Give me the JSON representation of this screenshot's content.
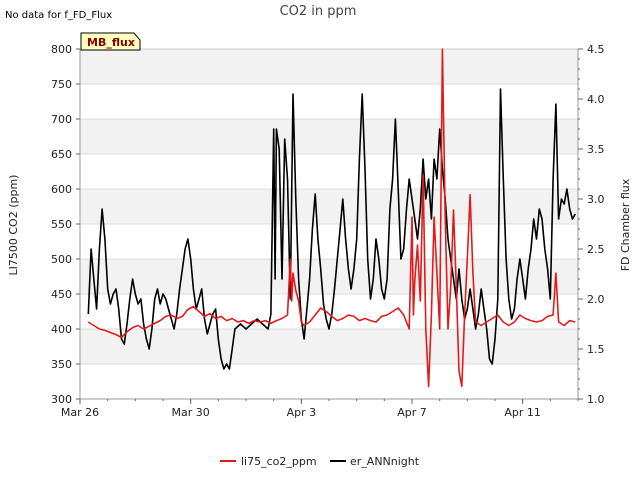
{
  "chart_data": {
    "type": "line",
    "title": "CO2 in ppm",
    "note": "No data for f_FD_Flux",
    "badge": "MB_flux",
    "ylabel_left": "LI7500 CO2 (ppm)",
    "ylabel_right": "FD Chamber flux",
    "ylim_left": [
      300,
      800
    ],
    "ylim_right": [
      1.0,
      4.5
    ],
    "left_ticks": [
      "300",
      "350",
      "400",
      "450",
      "500",
      "550",
      "600",
      "650",
      "700",
      "750",
      "800"
    ],
    "right_ticks": [
      "1.0",
      "1.5",
      "2.0",
      "2.5",
      "3.0",
      "3.5",
      "4.0",
      "4.5"
    ],
    "x_ticks": [
      {
        "label": "Mar 26",
        "day": 0
      },
      {
        "label": "Mar 30",
        "day": 4
      },
      {
        "label": "Apr 3",
        "day": 8
      },
      {
        "label": "Apr 7",
        "day": 12
      },
      {
        "label": "Apr 11",
        "day": 16
      }
    ],
    "xlim_days": [
      0,
      18
    ],
    "legend": [
      {
        "name": "li75_co2_ppm",
        "color": "#e31a1c"
      },
      {
        "name": "er_ANNnight",
        "color": "#000000"
      }
    ],
    "series": [
      {
        "name": "li75_co2_ppm",
        "axis": "left",
        "color": "#e31a1c",
        "points": [
          [
            0.3,
            410
          ],
          [
            0.5,
            405
          ],
          [
            0.7,
            400
          ],
          [
            0.9,
            398
          ],
          [
            1.1,
            395
          ],
          [
            1.3,
            392
          ],
          [
            1.5,
            388
          ],
          [
            1.7,
            396
          ],
          [
            1.9,
            402
          ],
          [
            2.1,
            405
          ],
          [
            2.3,
            400
          ],
          [
            2.5,
            404
          ],
          [
            2.7,
            408
          ],
          [
            2.9,
            412
          ],
          [
            3.1,
            418
          ],
          [
            3.3,
            420
          ],
          [
            3.5,
            415
          ],
          [
            3.7,
            418
          ],
          [
            3.9,
            428
          ],
          [
            4.1,
            432
          ],
          [
            4.3,
            425
          ],
          [
            4.5,
            418
          ],
          [
            4.7,
            422
          ],
          [
            4.9,
            415
          ],
          [
            5.1,
            418
          ],
          [
            5.3,
            412
          ],
          [
            5.5,
            415
          ],
          [
            5.7,
            410
          ],
          [
            5.9,
            412
          ],
          [
            6.1,
            408
          ],
          [
            6.3,
            412
          ],
          [
            6.5,
            410
          ],
          [
            6.7,
            412
          ],
          [
            6.9,
            408
          ],
          [
            7.1,
            412
          ],
          [
            7.3,
            415
          ],
          [
            7.5,
            420
          ],
          [
            7.6,
            500
          ],
          [
            7.65,
            440
          ],
          [
            7.7,
            480
          ],
          [
            7.8,
            455
          ],
          [
            7.9,
            440
          ],
          [
            8.0,
            410
          ],
          [
            8.1,
            405
          ],
          [
            8.3,
            410
          ],
          [
            8.5,
            420
          ],
          [
            8.7,
            430
          ],
          [
            8.9,
            425
          ],
          [
            9.1,
            418
          ],
          [
            9.3,
            412
          ],
          [
            9.5,
            415
          ],
          [
            9.7,
            420
          ],
          [
            9.9,
            418
          ],
          [
            10.1,
            412
          ],
          [
            10.3,
            415
          ],
          [
            10.5,
            412
          ],
          [
            10.7,
            410
          ],
          [
            10.9,
            418
          ],
          [
            11.1,
            420
          ],
          [
            11.3,
            425
          ],
          [
            11.5,
            430
          ],
          [
            11.7,
            420
          ],
          [
            11.9,
            400
          ],
          [
            12.0,
            560
          ],
          [
            12.05,
            420
          ],
          [
            12.1,
            470
          ],
          [
            12.2,
            520
          ],
          [
            12.3,
            440
          ],
          [
            12.4,
            620
          ],
          [
            12.5,
            400
          ],
          [
            12.6,
            318
          ],
          [
            12.7,
            420
          ],
          [
            12.8,
            560
          ],
          [
            12.9,
            480
          ],
          [
            13.0,
            400
          ],
          [
            13.1,
            800
          ],
          [
            13.2,
            560
          ],
          [
            13.3,
            400
          ],
          [
            13.4,
            460
          ],
          [
            13.5,
            570
          ],
          [
            13.6,
            460
          ],
          [
            13.7,
            340
          ],
          [
            13.8,
            318
          ],
          [
            13.9,
            420
          ],
          [
            14.0,
            500
          ],
          [
            14.1,
            592
          ],
          [
            14.2,
            480
          ],
          [
            14.3,
            410
          ],
          [
            14.5,
            405
          ],
          [
            14.7,
            410
          ],
          [
            14.9,
            415
          ],
          [
            15.1,
            420
          ],
          [
            15.3,
            410
          ],
          [
            15.5,
            405
          ],
          [
            15.7,
            410
          ],
          [
            15.9,
            420
          ],
          [
            16.1,
            415
          ],
          [
            16.3,
            412
          ],
          [
            16.5,
            410
          ],
          [
            16.7,
            412
          ],
          [
            16.9,
            418
          ],
          [
            17.1,
            420
          ],
          [
            17.2,
            480
          ],
          [
            17.3,
            410
          ],
          [
            17.5,
            405
          ],
          [
            17.7,
            412
          ],
          [
            17.9,
            410
          ]
        ]
      },
      {
        "name": "er_ANNnight",
        "axis": "right",
        "color": "#000000",
        "points": [
          [
            0.3,
            1.85
          ],
          [
            0.4,
            2.5
          ],
          [
            0.5,
            2.2
          ],
          [
            0.6,
            1.9
          ],
          [
            0.7,
            2.5
          ],
          [
            0.8,
            2.9
          ],
          [
            0.9,
            2.6
          ],
          [
            1.0,
            2.1
          ],
          [
            1.1,
            1.95
          ],
          [
            1.2,
            2.05
          ],
          [
            1.3,
            2.1
          ],
          [
            1.4,
            1.9
          ],
          [
            1.5,
            1.6
          ],
          [
            1.6,
            1.55
          ],
          [
            1.7,
            1.75
          ],
          [
            1.8,
            2.0
          ],
          [
            1.9,
            2.2
          ],
          [
            2.0,
            2.05
          ],
          [
            2.1,
            1.95
          ],
          [
            2.2,
            2.0
          ],
          [
            2.3,
            1.75
          ],
          [
            2.4,
            1.6
          ],
          [
            2.5,
            1.5
          ],
          [
            2.6,
            1.7
          ],
          [
            2.7,
            2.0
          ],
          [
            2.8,
            2.1
          ],
          [
            2.9,
            1.95
          ],
          [
            3.0,
            2.05
          ],
          [
            3.1,
            2.0
          ],
          [
            3.2,
            1.9
          ],
          [
            3.3,
            1.8
          ],
          [
            3.4,
            1.7
          ],
          [
            3.5,
            1.85
          ],
          [
            3.6,
            2.1
          ],
          [
            3.7,
            2.3
          ],
          [
            3.8,
            2.5
          ],
          [
            3.9,
            2.6
          ],
          [
            4.0,
            2.4
          ],
          [
            4.1,
            2.1
          ],
          [
            4.2,
            1.9
          ],
          [
            4.3,
            2.0
          ],
          [
            4.4,
            2.1
          ],
          [
            4.5,
            1.8
          ],
          [
            4.6,
            1.65
          ],
          [
            4.7,
            1.75
          ],
          [
            4.8,
            1.85
          ],
          [
            4.9,
            1.9
          ],
          [
            5.0,
            1.6
          ],
          [
            5.1,
            1.4
          ],
          [
            5.2,
            1.3
          ],
          [
            5.3,
            1.35
          ],
          [
            5.4,
            1.3
          ],
          [
            5.5,
            1.5
          ],
          [
            5.6,
            1.7
          ],
          [
            5.8,
            1.75
          ],
          [
            6.0,
            1.7
          ],
          [
            6.2,
            1.75
          ],
          [
            6.4,
            1.8
          ],
          [
            6.6,
            1.75
          ],
          [
            6.8,
            1.7
          ],
          [
            6.9,
            1.85
          ],
          [
            7.0,
            3.7
          ],
          [
            7.05,
            2.2
          ],
          [
            7.1,
            3.7
          ],
          [
            7.2,
            3.5
          ],
          [
            7.3,
            2.2
          ],
          [
            7.4,
            3.6
          ],
          [
            7.5,
            3.2
          ],
          [
            7.6,
            2.0
          ],
          [
            7.7,
            4.05
          ],
          [
            7.8,
            3.0
          ],
          [
            7.9,
            2.2
          ],
          [
            8.0,
            1.8
          ],
          [
            8.1,
            1.6
          ],
          [
            8.2,
            1.9
          ],
          [
            8.3,
            2.2
          ],
          [
            8.4,
            2.7
          ],
          [
            8.5,
            3.05
          ],
          [
            8.6,
            2.6
          ],
          [
            8.7,
            2.3
          ],
          [
            8.8,
            1.95
          ],
          [
            8.9,
            1.8
          ],
          [
            9.0,
            1.7
          ],
          [
            9.1,
            1.85
          ],
          [
            9.2,
            2.1
          ],
          [
            9.3,
            2.4
          ],
          [
            9.4,
            2.7
          ],
          [
            9.5,
            3.0
          ],
          [
            9.6,
            2.6
          ],
          [
            9.7,
            2.3
          ],
          [
            9.8,
            2.1
          ],
          [
            9.9,
            2.3
          ],
          [
            10.0,
            2.6
          ],
          [
            10.1,
            3.4
          ],
          [
            10.2,
            4.05
          ],
          [
            10.3,
            3.3
          ],
          [
            10.4,
            2.4
          ],
          [
            10.5,
            2.0
          ],
          [
            10.6,
            2.2
          ],
          [
            10.7,
            2.6
          ],
          [
            10.8,
            2.4
          ],
          [
            10.9,
            2.1
          ],
          [
            11.0,
            2.0
          ],
          [
            11.1,
            2.2
          ],
          [
            11.2,
            2.9
          ],
          [
            11.3,
            3.2
          ],
          [
            11.4,
            3.8
          ],
          [
            11.5,
            3.1
          ],
          [
            11.6,
            2.4
          ],
          [
            11.7,
            2.5
          ],
          [
            11.8,
            2.9
          ],
          [
            11.9,
            3.2
          ],
          [
            12.0,
            3.0
          ],
          [
            12.1,
            2.8
          ],
          [
            12.2,
            2.6
          ],
          [
            12.3,
            2.9
          ],
          [
            12.4,
            3.4
          ],
          [
            12.5,
            3.0
          ],
          [
            12.6,
            3.2
          ],
          [
            12.7,
            2.8
          ],
          [
            12.8,
            3.4
          ],
          [
            12.9,
            3.2
          ],
          [
            13.0,
            3.7
          ],
          [
            13.1,
            3.3
          ],
          [
            13.2,
            3.0
          ],
          [
            13.3,
            2.6
          ],
          [
            13.4,
            2.4
          ],
          [
            13.5,
            2.2
          ],
          [
            13.6,
            2.0
          ],
          [
            13.7,
            2.3
          ],
          [
            13.8,
            2.0
          ],
          [
            13.9,
            1.8
          ],
          [
            14.0,
            1.9
          ],
          [
            14.1,
            2.1
          ],
          [
            14.2,
            1.9
          ],
          [
            14.3,
            1.7
          ],
          [
            14.4,
            1.85
          ],
          [
            14.5,
            2.1
          ],
          [
            14.6,
            1.9
          ],
          [
            14.7,
            1.7
          ],
          [
            14.8,
            1.4
          ],
          [
            14.9,
            1.35
          ],
          [
            15.0,
            1.6
          ],
          [
            15.1,
            2.0
          ],
          [
            15.2,
            4.1
          ],
          [
            15.3,
            3.2
          ],
          [
            15.4,
            2.4
          ],
          [
            15.5,
            2.0
          ],
          [
            15.6,
            1.8
          ],
          [
            15.7,
            1.9
          ],
          [
            15.8,
            2.2
          ],
          [
            15.9,
            2.4
          ],
          [
            16.0,
            2.2
          ],
          [
            16.1,
            2.0
          ],
          [
            16.2,
            2.3
          ],
          [
            16.3,
            2.5
          ],
          [
            16.4,
            2.8
          ],
          [
            16.5,
            2.6
          ],
          [
            16.6,
            2.9
          ],
          [
            16.7,
            2.8
          ],
          [
            16.8,
            2.5
          ],
          [
            16.9,
            2.3
          ],
          [
            17.0,
            2.0
          ],
          [
            17.1,
            3.2
          ],
          [
            17.2,
            3.95
          ],
          [
            17.3,
            2.8
          ],
          [
            17.4,
            3.0
          ],
          [
            17.5,
            2.95
          ],
          [
            17.6,
            3.1
          ],
          [
            17.7,
            2.9
          ],
          [
            17.8,
            2.8
          ],
          [
            17.9,
            2.85
          ]
        ]
      }
    ]
  }
}
